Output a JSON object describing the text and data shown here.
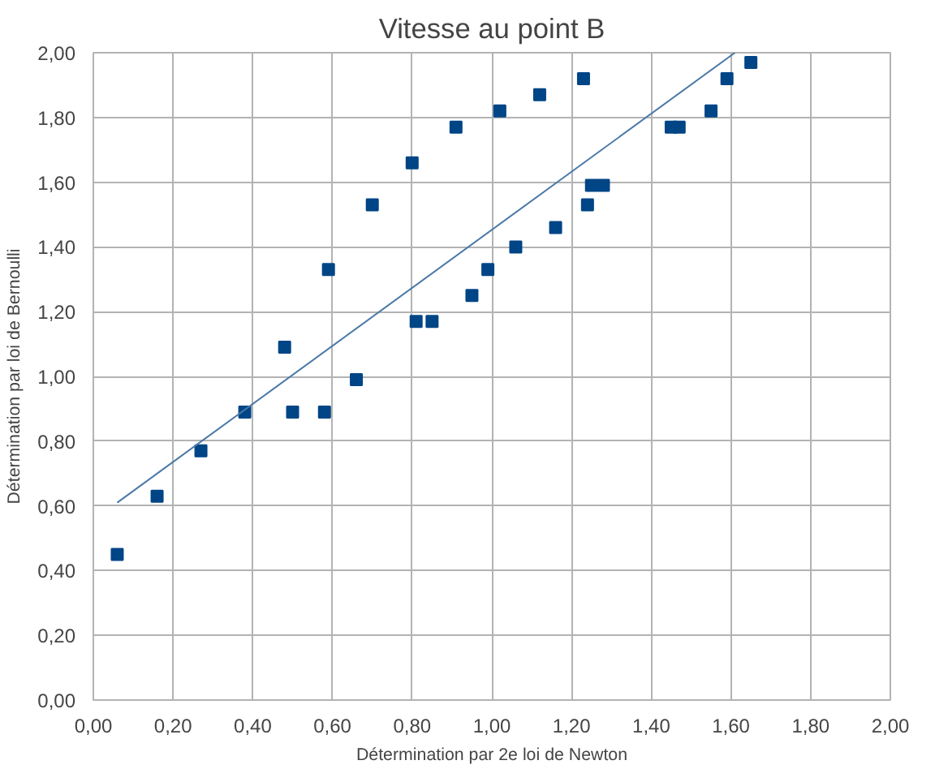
{
  "chart_data": {
    "type": "scatter",
    "title": "Vitesse au point B",
    "xlabel": "Détermination par 2e loi de Newton",
    "ylabel": "Détermination par loi de Bernoulli",
    "grid": true,
    "xlim": [
      0,
      2
    ],
    "ylim": [
      0,
      2
    ],
    "xticks": [
      {
        "value": 0,
        "label": "0,00"
      },
      {
        "value": 0.2,
        "label": "0,20"
      },
      {
        "value": 0.4,
        "label": "0,40"
      },
      {
        "value": 0.6,
        "label": "0,60"
      },
      {
        "value": 0.8,
        "label": "0,80"
      },
      {
        "value": 1.0,
        "label": "1,00"
      },
      {
        "value": 1.2,
        "label": "1,20"
      },
      {
        "value": 1.4,
        "label": "1,40"
      },
      {
        "value": 1.6,
        "label": "1,60"
      },
      {
        "value": 1.8,
        "label": "1,80"
      },
      {
        "value": 2.0,
        "label": "2,00"
      }
    ],
    "yticks": [
      {
        "value": 0,
        "label": "0,00"
      },
      {
        "value": 0.2,
        "label": "0,20"
      },
      {
        "value": 0.4,
        "label": "0,40"
      },
      {
        "value": 0.6,
        "label": "0,60"
      },
      {
        "value": 0.8,
        "label": "0,80"
      },
      {
        "value": 1.0,
        "label": "1,00"
      },
      {
        "value": 1.2,
        "label": "1,20"
      },
      {
        "value": 1.4,
        "label": "1,40"
      },
      {
        "value": 1.6,
        "label": "1,60"
      },
      {
        "value": 1.8,
        "label": "1,80"
      },
      {
        "value": 2.0,
        "label": "2,00"
      }
    ],
    "series": [
      {
        "marker": "square",
        "color": "#004586",
        "x": [
          0.06,
          0.16,
          0.27,
          0.38,
          0.48,
          0.5,
          0.58,
          0.59,
          0.66,
          0.7,
          0.8,
          0.81,
          0.85,
          0.91,
          0.95,
          0.99,
          1.02,
          1.06,
          1.12,
          1.16,
          1.23,
          1.24,
          1.25,
          1.28,
          1.45,
          1.47,
          1.55,
          1.59,
          1.65
        ],
        "values": [
          0.45,
          0.63,
          0.77,
          0.89,
          1.09,
          0.89,
          0.89,
          1.33,
          0.99,
          1.53,
          1.66,
          1.17,
          1.17,
          1.77,
          1.25,
          1.33,
          1.82,
          1.4,
          1.87,
          1.46,
          1.92,
          1.53,
          1.59,
          1.59,
          1.77,
          1.77,
          1.82,
          1.92,
          1.97
        ]
      },
      {
        "type": "line",
        "marker": "none",
        "color": "#4a78a8",
        "x": [
          0.06,
          1.61
        ],
        "values": [
          0.61,
          2.0
        ]
      }
    ]
  }
}
